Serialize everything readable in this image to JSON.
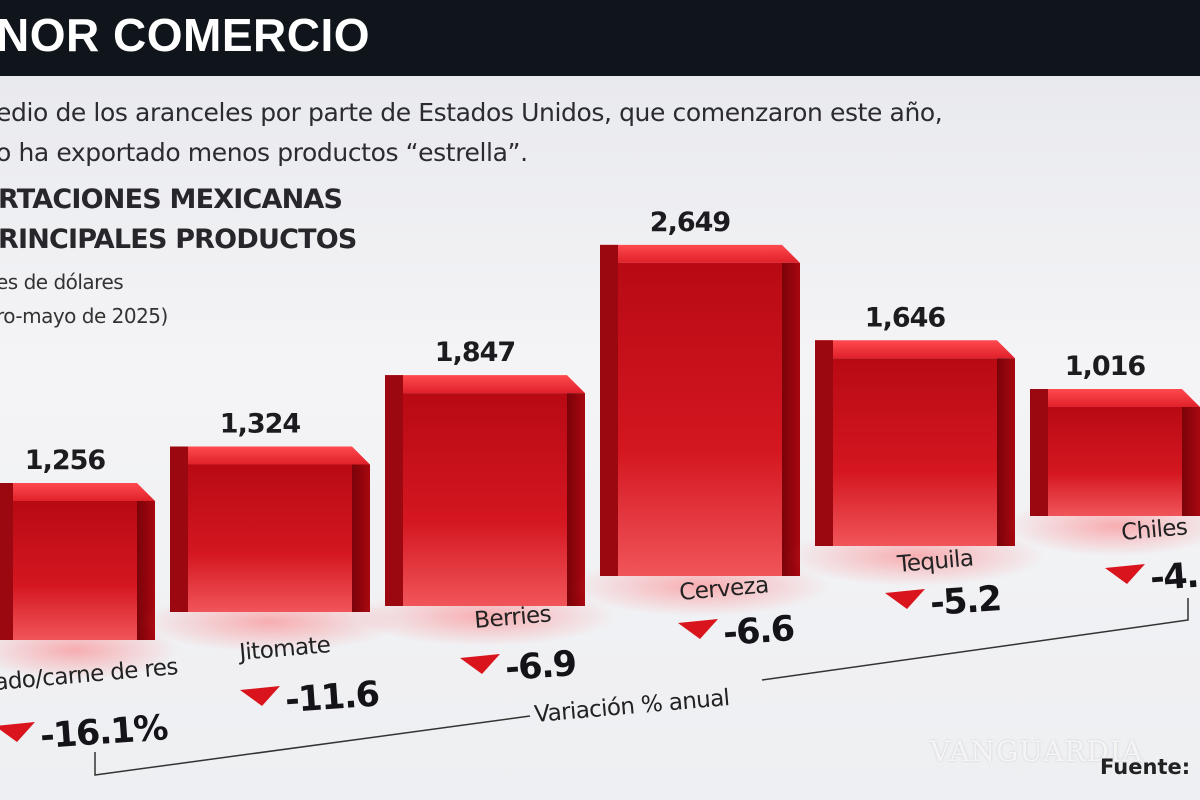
{
  "header": {
    "title": "NOR COMERCIO"
  },
  "intro": {
    "line1": "edio de los aranceles por parte de Estados Unidos, que comenzaron este año,",
    "line2": "o ha exportado menos productos “estrella”."
  },
  "chart_data": {
    "type": "bar",
    "title_line1": "RTACIONES MEXICANAS",
    "title_line2": "RINCIPALES PRODUCTOS",
    "unit_line1": "es de dólares",
    "unit_line2": "ro-mayo de 2025)",
    "categories": [
      "ado/carne de res",
      "Jitomate",
      "Berries",
      "Cerveza",
      "Tequila",
      "Chiles"
    ],
    "value_labels": [
      "1,256",
      "1,324",
      "1,847",
      "2,649",
      "1,646",
      "1,016"
    ],
    "values": [
      1256,
      1324,
      1847,
      2649,
      1646,
      1016
    ],
    "variation_labels": [
      "-16.1%",
      "-11.6",
      "-6.9",
      "-6.6",
      "-5.2",
      "-4."
    ],
    "variation_label": "Variación % anual",
    "bar_color": "#c8101a",
    "arrow_color": "#d9141c",
    "arrow_icon": "triangle-down-icon"
  },
  "watermark": "VANGUARDIA",
  "source": "Fuente: "
}
